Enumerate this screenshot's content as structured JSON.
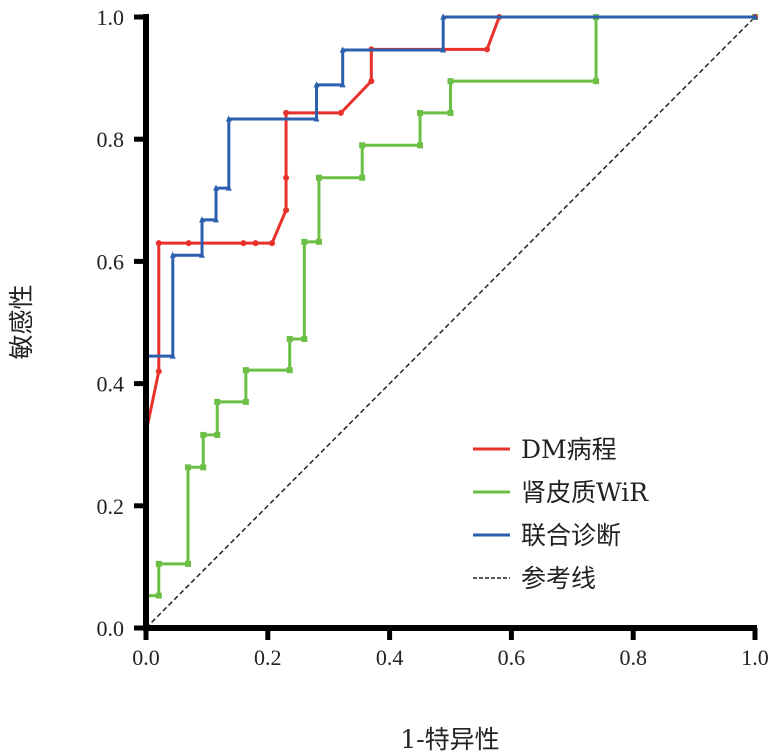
{
  "chart_data": {
    "type": "line",
    "title": "",
    "xlabel": "1-特异性",
    "ylabel": "敏感性",
    "xlim": [
      0,
      1
    ],
    "ylim": [
      0,
      1
    ],
    "xticks": [
      "0.0",
      "0.2",
      "0.4",
      "0.6",
      "0.8",
      "1.0"
    ],
    "yticks": [
      "0.0",
      "0.2",
      "0.4",
      "0.6",
      "0.8",
      "1.0"
    ],
    "grid": false,
    "legend_position": "bottom-right",
    "series": [
      {
        "name": "DM病程",
        "color": "#e8312a",
        "marker": "circle",
        "x": [
          0,
          0.021,
          0.021,
          0.07,
          0.16,
          0.18,
          0.207,
          0.23,
          0.23,
          0.23,
          0.32,
          0.37,
          0.37,
          0.56,
          0.58,
          1.0
        ],
        "y": [
          0.32,
          0.42,
          0.63,
          0.63,
          0.63,
          0.63,
          0.63,
          0.684,
          0.737,
          0.843,
          0.843,
          0.895,
          0.947,
          0.947,
          1.0,
          1.0
        ]
      },
      {
        "name": "肾皮质WiR",
        "color": "#6cbf45",
        "marker": "square",
        "x": [
          0,
          0,
          0.021,
          0.021,
          0.069,
          0.069,
          0.094,
          0.094,
          0.117,
          0.117,
          0.164,
          0.164,
          0.236,
          0.236,
          0.26,
          0.26,
          0.284,
          0.284,
          0.355,
          0.355,
          0.45,
          0.45,
          0.5,
          0.5,
          0.739,
          0.739,
          1.0
        ],
        "y": [
          0,
          0.053,
          0.053,
          0.105,
          0.105,
          0.263,
          0.263,
          0.316,
          0.316,
          0.37,
          0.37,
          0.422,
          0.422,
          0.473,
          0.473,
          0.632,
          0.632,
          0.737,
          0.737,
          0.79,
          0.79,
          0.843,
          0.843,
          0.895,
          0.895,
          1.0,
          1.0
        ]
      },
      {
        "name": "联合诊断",
        "color": "#2c5fae",
        "marker": "triangle",
        "x": [
          0,
          0,
          0.044,
          0.044,
          0.092,
          0.092,
          0.115,
          0.115,
          0.136,
          0.136,
          0.28,
          0.28,
          0.323,
          0.323,
          0.488,
          0.488,
          1.0
        ],
        "y": [
          0,
          0.445,
          0.445,
          0.61,
          0.61,
          0.668,
          0.668,
          0.72,
          0.72,
          0.833,
          0.833,
          0.889,
          0.889,
          0.946,
          0.946,
          1.0,
          1.0
        ]
      },
      {
        "name": "参考线",
        "color": "#222222",
        "dashed": true,
        "x": [
          0,
          1
        ],
        "y": [
          0,
          1
        ]
      }
    ]
  }
}
